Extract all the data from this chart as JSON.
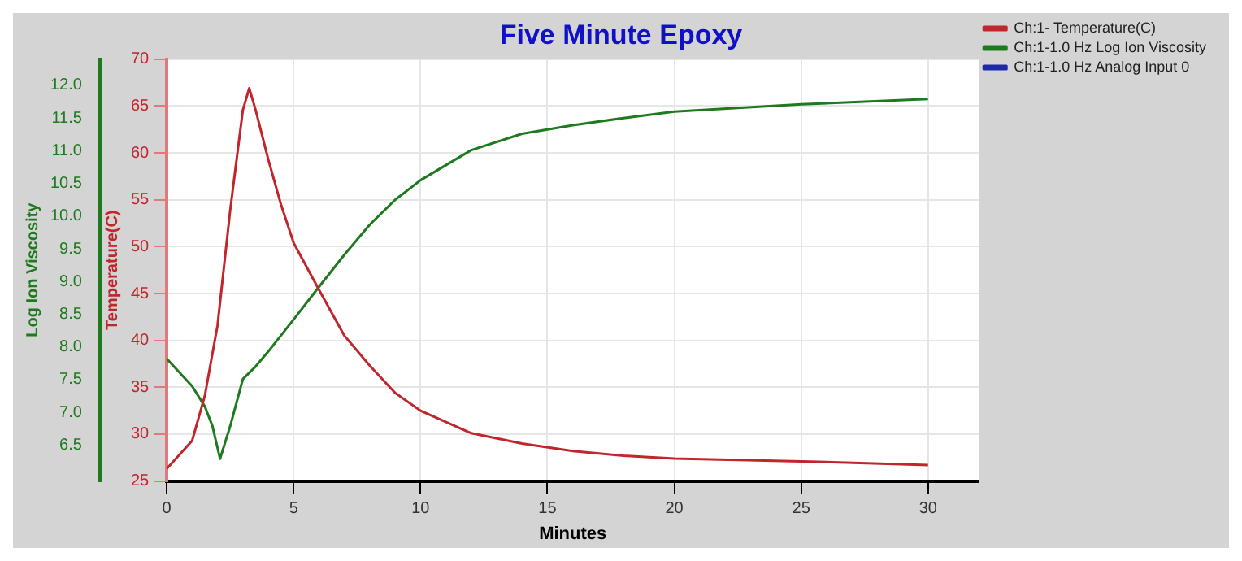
{
  "chart_data": {
    "type": "line",
    "title": "Five Minute Epoxy",
    "xlabel": "Minutes",
    "ylabel": "Temperature(C)",
    "y2label": "Log Ion Viscosity",
    "xlim": [
      0,
      32
    ],
    "xticks": [
      0,
      5,
      10,
      15,
      20,
      25,
      30
    ],
    "ylim": [
      25,
      70
    ],
    "yticks": [
      25,
      30,
      35,
      40,
      45,
      50,
      55,
      60,
      65,
      70
    ],
    "y2lim": [
      5.95,
      12.4
    ],
    "y2ticks": [
      6.5,
      {
        "value": 7,
        "label": "7.0"
      },
      7.5,
      {
        "value": 8,
        "label": "8.0"
      },
      8.5,
      {
        "value": 9,
        "label": "9.0"
      },
      9.5,
      {
        "value": 10,
        "label": "10.0"
      },
      10.5,
      {
        "value": 11,
        "label": "11.0"
      },
      11.5,
      {
        "value": 12,
        "label": "12.0"
      }
    ],
    "grid": true,
    "legend": "right",
    "marker": "none",
    "line_style": "solid",
    "series": [
      {
        "name": "Ch:1- Temperature(C)",
        "color": "#c0262c",
        "x": [
          0,
          1,
          1.5,
          2,
          2.5,
          3,
          3.25,
          3.5,
          4,
          4.5,
          5,
          6,
          7,
          8,
          9,
          10,
          12,
          14,
          16,
          18,
          20,
          25,
          30
        ],
        "values": [
          26.3,
          29.3,
          34.1,
          41.6,
          53.9,
          64.6,
          66.9,
          64.6,
          59.3,
          54.5,
          50.4,
          45.4,
          40.5,
          37.3,
          34.4,
          32.5,
          30.1,
          29.0,
          28.2,
          27.7,
          27.4,
          27.1,
          26.7
        ]
      },
      {
        "name": "Ch:1-1.0 Hz Log Ion Viscosity",
        "color": "#1f7a1f",
        "axis": "y2",
        "x": [
          0,
          1,
          1.5,
          1.8,
          2.1,
          2.5,
          3,
          3.5,
          4,
          5,
          6,
          7,
          8,
          9,
          10,
          12,
          14,
          16,
          18,
          20,
          25,
          30
        ],
        "values": [
          7.82,
          7.4,
          7.09,
          6.79,
          6.29,
          6.79,
          7.51,
          7.7,
          7.93,
          8.42,
          8.92,
          9.41,
          9.87,
          10.25,
          10.55,
          11.01,
          11.26,
          11.39,
          11.5,
          11.6,
          11.71,
          11.79
        ]
      },
      {
        "name": "Ch:1-1.0 Hz Analog Input 0",
        "color": "#1c2aa8"
      }
    ]
  }
}
